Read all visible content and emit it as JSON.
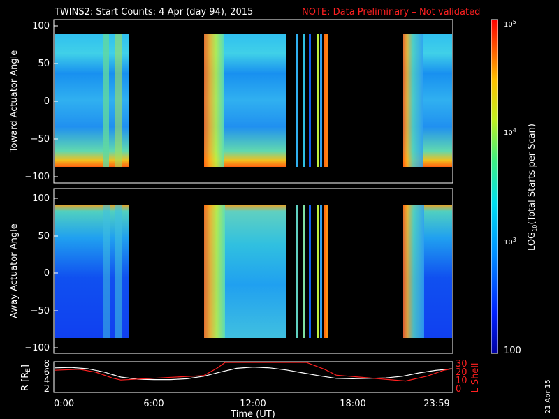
{
  "chart_data": [
    {
      "type": "heatmap",
      "title": "TWINS2: Start Counts:  4 Apr (day  94), 2015",
      "note": "NOTE: Data Preliminary – Not validated",
      "ylabel": "Toward Actuator Angle",
      "ylim": [
        -110,
        110
      ],
      "yticks": [
        "100",
        "50",
        "0",
        "−50",
        "−100"
      ],
      "data_range_y": [
        -90,
        90
      ],
      "data_blocks_hours": [
        [
          0,
          4.2
        ],
        [
          9.0,
          14.0
        ],
        [
          21.2,
          24.0
        ]
      ],
      "bright_lines_hours": [
        14.5,
        14.8,
        15.1,
        15.6,
        15.9,
        16.1,
        16.4
      ]
    },
    {
      "type": "heatmap",
      "ylabel": "Away Actuator Angle",
      "ylim": [
        -110,
        110
      ],
      "yticks": [
        "100",
        "50",
        "0",
        "−50",
        "−100"
      ],
      "data_range_y": [
        -90,
        90
      ],
      "data_blocks_hours": [
        [
          0,
          4.2
        ],
        [
          9.0,
          14.0
        ],
        [
          21.2,
          24.0
        ]
      ],
      "bright_lines_hours": [
        14.5,
        14.8,
        15.1,
        15.6,
        15.9,
        16.1,
        16.4
      ]
    },
    {
      "type": "line",
      "ylabel_left": "R [R",
      "ylabel_left_sub": "E",
      "ylabel_left_end": "]",
      "ylabel_right": "L Shell",
      "yticks_left": [
        "8",
        "6",
        "4",
        "2"
      ],
      "yticks_right": [
        "30",
        "20",
        "10",
        "0"
      ],
      "ylim_left": [
        1.5,
        8.5
      ],
      "ylim_right": [
        0,
        30
      ],
      "series": [
        {
          "color": "#ffffff",
          "x": [
            0,
            1,
            2,
            3,
            4,
            5,
            6,
            7,
            8,
            9,
            10,
            11,
            12,
            13,
            14,
            15,
            16,
            17,
            18,
            19,
            20,
            21,
            22,
            23,
            24
          ],
          "y": [
            7.2,
            7.3,
            7.0,
            6.2,
            5.0,
            4.5,
            4.4,
            4.4,
            4.6,
            5.2,
            6.2,
            7.1,
            7.4,
            7.2,
            6.7,
            6.0,
            5.3,
            4.7,
            4.6,
            4.7,
            4.8,
            5.2,
            6.0,
            6.6,
            7.0
          ]
        },
        {
          "color": "#ff2020",
          "x": [
            0,
            1.5,
            2.5,
            3.5,
            4.0,
            9.0,
            9.8,
            10.3,
            15.2,
            16.3,
            17.0,
            21.2,
            22.5,
            23.5,
            24.0
          ],
          "y": [
            22.0,
            23.0,
            20.0,
            14.0,
            12.0,
            16.5,
            24.0,
            30.0,
            30.0,
            23.0,
            17.0,
            11.0,
            16.0,
            22.0,
            23.5
          ]
        }
      ],
      "xticks": [
        "0:00",
        "6:00",
        "12:00",
        "18:00",
        "23:59"
      ],
      "xlabel": "Time (UT)"
    }
  ],
  "colorbar": {
    "label_main": "LOG",
    "label_sub": "10",
    "label_rest": "(Total Starts per Scan)",
    "ticks": [
      {
        "base": "10",
        "exp": "5",
        "value": 100000
      },
      {
        "base": "10",
        "exp": "4",
        "value": 10000
      },
      {
        "base": "10",
        "exp": "3",
        "value": 1000
      },
      {
        "base": "100",
        "exp": "",
        "value": 100
      }
    ],
    "range": [
      100,
      100000
    ]
  },
  "date_stamp": "21 Apr 15",
  "colors": {
    "background": "#000000",
    "note": "#ff2020",
    "rshell": "#ffffff",
    "lshell": "#ff2020"
  }
}
